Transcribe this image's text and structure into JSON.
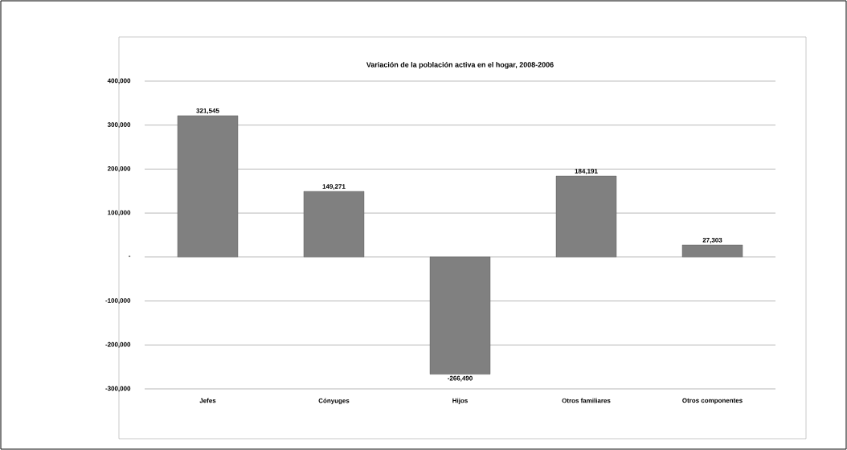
{
  "chart_data": {
    "type": "bar",
    "title": "Variación de la población activa en el hogar, 2008-2006",
    "categories": [
      "Jefes",
      "Cónyuges",
      "Hijos",
      "Otros familiares",
      "Otros componentes"
    ],
    "values": [
      321545,
      149271,
      -266490,
      184191,
      27303
    ],
    "value_labels": [
      "321,545",
      "149,271",
      "-266,490",
      "184,191",
      "27,303"
    ],
    "color": "#808080",
    "ylim": [
      -300000,
      400000
    ],
    "yticks": [
      {
        "value": -300000,
        "label": "-300,000"
      },
      {
        "value": -200000,
        "label": "-200,000"
      },
      {
        "value": -100000,
        "label": "-100,000"
      },
      {
        "value": 0,
        "label": "-"
      },
      {
        "value": 100000,
        "label": "100,000"
      },
      {
        "value": 200000,
        "label": "200,000"
      },
      {
        "value": 300000,
        "label": "300,000"
      },
      {
        "value": 400000,
        "label": "400,000"
      }
    ],
    "grid": "y"
  }
}
